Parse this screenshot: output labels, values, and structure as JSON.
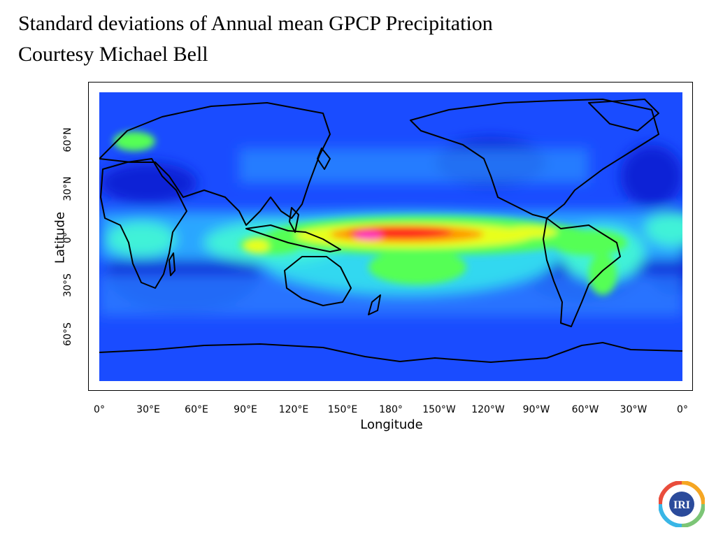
{
  "slide": {
    "title": "Standard deviations of Annual mean GPCP Precipitation",
    "subtitle": "Courtesy Michael Bell"
  },
  "map": {
    "type": "heatmap",
    "projection": "cylindrical equidistant, 0°–360° longitude",
    "xlabel": "Longitude",
    "ylabel": "Latitude",
    "x_ticks": [
      "0°",
      "30°E",
      "60°E",
      "90°E",
      "120°E",
      "150°E",
      "180°",
      "150°W",
      "120°W",
      "90°W",
      "60°W",
      "30°W",
      "0°"
    ],
    "y_ticks": [
      "60°N",
      "30°N",
      "0°",
      "30°S",
      "60°S"
    ],
    "colormap": [
      "#0000c8",
      "#1a4cff",
      "#2aa6ff",
      "#3ff2d8",
      "#55ff55",
      "#e8ff1a",
      "#ff9a00",
      "#ff1a1a",
      "#ff33cc"
    ],
    "coastline_color": "#000000"
  },
  "logo": {
    "text": "IRI",
    "ring_colors": [
      "#e94d3c",
      "#f5a623",
      "#f6d33c",
      "#7cc576",
      "#39b6e6",
      "#6b8ed6"
    ],
    "badge_color": "#2b4b9b"
  }
}
